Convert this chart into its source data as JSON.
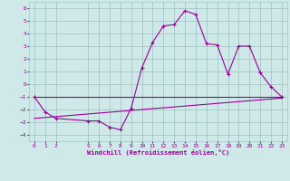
{
  "xlabel": "Windchill (Refroidissement éolien,°C)",
  "bg_color": "#cfe8e8",
  "grid_color": "#a0c8c8",
  "line_color": "#990099",
  "hours": [
    0,
    1,
    2,
    5,
    6,
    7,
    8,
    9,
    10,
    11,
    12,
    13,
    14,
    15,
    16,
    17,
    18,
    19,
    20,
    21,
    22,
    23
  ],
  "windchill": [
    -1.0,
    -2.2,
    -2.7,
    -2.9,
    -2.9,
    -3.4,
    -3.6,
    -1.9,
    1.3,
    3.3,
    4.6,
    4.7,
    5.8,
    5.5,
    3.2,
    3.1,
    0.8,
    3.0,
    3.0,
    0.9,
    -0.2,
    -1.0
  ],
  "line2_x": [
    0,
    23
  ],
  "line2_y": [
    -1.0,
    -1.0
  ],
  "line3_x": [
    0,
    23
  ],
  "line3_y": [
    -2.7,
    -1.1
  ],
  "ylim": [
    -4.5,
    6.5
  ],
  "xlim": [
    -0.5,
    23.5
  ],
  "yticks": [
    -4,
    -3,
    -2,
    -1,
    0,
    1,
    2,
    3,
    4,
    5,
    6
  ],
  "xticks": [
    0,
    1,
    2,
    5,
    6,
    7,
    8,
    9,
    10,
    11,
    12,
    13,
    14,
    15,
    16,
    17,
    18,
    19,
    20,
    21,
    22,
    23
  ]
}
